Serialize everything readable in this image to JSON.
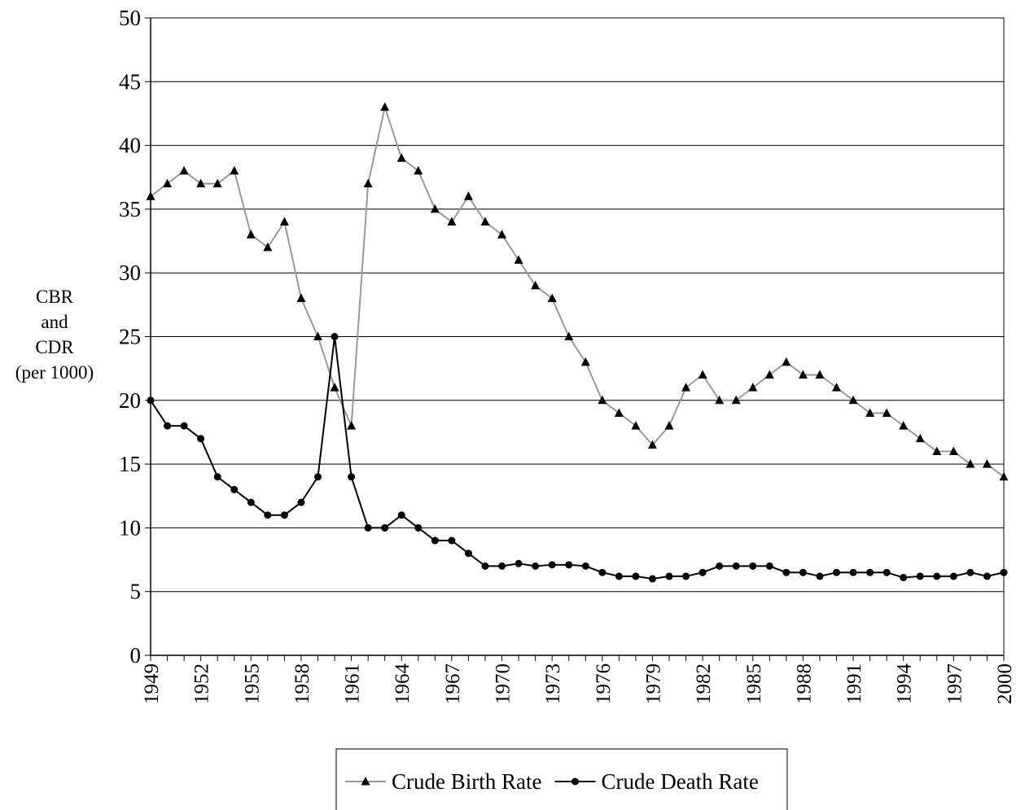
{
  "chart_data": {
    "type": "line",
    "y_label": [
      "CBR",
      "and",
      "CDR",
      "(per 1000)"
    ],
    "x": [
      1949,
      1950,
      1951,
      1952,
      1953,
      1954,
      1955,
      1956,
      1957,
      1958,
      1959,
      1960,
      1961,
      1962,
      1963,
      1964,
      1965,
      1966,
      1967,
      1968,
      1969,
      1970,
      1971,
      1972,
      1973,
      1974,
      1975,
      1976,
      1977,
      1978,
      1979,
      1980,
      1981,
      1982,
      1983,
      1984,
      1985,
      1986,
      1987,
      1988,
      1989,
      1990,
      1991,
      1992,
      1993,
      1994,
      1995,
      1996,
      1997,
      1998,
      1999,
      2000
    ],
    "series": [
      {
        "name": "Crude Birth Rate",
        "color": "#999999",
        "marker": "triangle",
        "marker_color": "#000000",
        "values": [
          36,
          37,
          38,
          37,
          37,
          38,
          33,
          32,
          34,
          28,
          25,
          21,
          18,
          37,
          43,
          39,
          38,
          35,
          34,
          36,
          34,
          33,
          31,
          29,
          28,
          25,
          23,
          20,
          19,
          18,
          16.5,
          18,
          21,
          22,
          20,
          20,
          21,
          22,
          23,
          22,
          22,
          21,
          20,
          19,
          19,
          18,
          17,
          16,
          16,
          15,
          15,
          14
        ]
      },
      {
        "name": "Crude Death Rate",
        "color": "#000000",
        "marker": "circle",
        "marker_color": "#000000",
        "values": [
          20,
          18,
          18,
          17,
          14,
          13,
          12,
          11,
          11,
          12,
          14,
          25,
          14,
          10,
          10,
          11,
          10,
          9,
          9,
          8,
          7,
          7,
          7.2,
          7,
          7.1,
          7.1,
          7,
          6.5,
          6.2,
          6.2,
          6,
          6.2,
          6.2,
          6.5,
          7,
          7,
          7,
          7,
          6.5,
          6.5,
          6.2,
          6.5,
          6.5,
          6.5,
          6.5,
          6.1,
          6.2,
          6.2,
          6.2,
          6.5,
          6.2,
          6.5
        ]
      }
    ],
    "xlim": [
      1949,
      2000
    ],
    "xticks": [
      1949,
      1952,
      1955,
      1958,
      1961,
      1964,
      1967,
      1970,
      1973,
      1976,
      1979,
      1982,
      1985,
      1988,
      1991,
      1994,
      1997,
      2000
    ],
    "ylim": [
      0,
      50
    ],
    "yticks": [
      0,
      5,
      10,
      15,
      20,
      25,
      30,
      35,
      40,
      45,
      50
    ],
    "grid": true
  }
}
